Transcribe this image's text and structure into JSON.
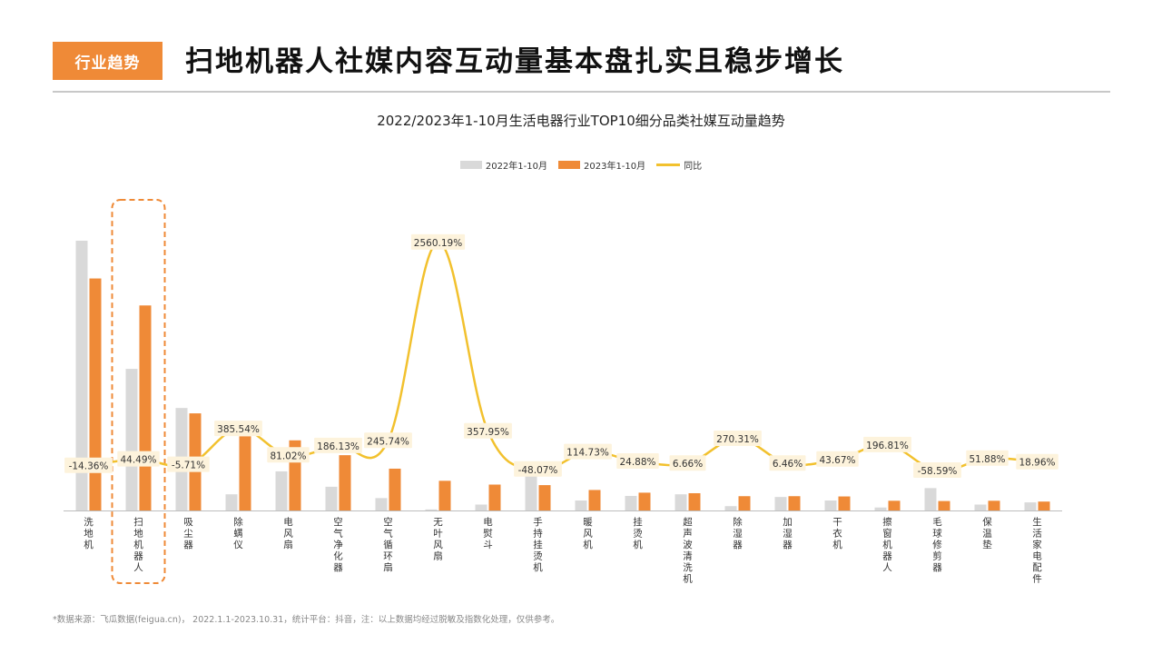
{
  "header": {
    "tag": "行业趋势",
    "title": "扫地机器人社媒内容互动量基本盘扎实且稳步增长"
  },
  "footnote": "*数据来源：飞瓜数据(feigua.cn)， 2022.1.1-2023.10.31，统计平台：抖音，注：以上数据均经过脱敏及指数化处理，仅供参考。",
  "colors": {
    "accent": "#ef8a37",
    "bar_2022": "#d9d9d9",
    "bar_2023": "#ef8a37",
    "yoy_line": "#f2c12e",
    "label_bg": "#fdf3dc",
    "highlight_box": "#ef8a37"
  },
  "chart_data": {
    "type": "bar",
    "title": "2022/2023年1-10月生活电器行业TOP10细分品类社媒互动量趋势",
    "categories": [
      "洗地机",
      "扫地机器人",
      "吸尘器",
      "除螨仪",
      "电风扇",
      "空气净化器",
      "空气循环扇",
      "无叶风扇",
      "电熨斗",
      "手持挂烫机",
      "暖风机",
      "挂烫机",
      "超声波清洗机",
      "除湿器",
      "加湿器",
      "干衣机",
      "擦窗机器人",
      "毛球修剪器",
      "保温垫",
      "生活家电配件"
    ],
    "series": [
      {
        "name": "2022年1-10月",
        "type": "bar",
        "values": [
          100,
          52.5,
          38,
          6,
          14.5,
          8.8,
          4.6,
          0.4,
          2.2,
          13,
          3.7,
          5.4,
          6,
          1.6,
          5,
          3.7,
          1.1,
          8.3,
          2.2,
          3
        ]
      },
      {
        "name": "2023年1-10月",
        "type": "bar",
        "values": [
          86,
          76,
          36,
          27.5,
          26,
          20.5,
          15.5,
          11,
          9.6,
          9.4,
          7.6,
          6.6,
          6.4,
          5.3,
          5.3,
          5.2,
          3.6,
          3.5,
          3.6,
          3.3
        ]
      },
      {
        "name": "同比",
        "type": "line",
        "values": [
          -14.36,
          44.49,
          -5.71,
          385.54,
          81.02,
          186.13,
          245.74,
          2560.19,
          357.95,
          -48.07,
          114.73,
          24.88,
          6.66,
          270.31,
          6.46,
          43.67,
          196.81,
          -58.59,
          51.88,
          18.96
        ]
      }
    ],
    "data_labels": [
      "-14.36%",
      "44.49%",
      "-5.71%",
      "385.54%",
      "81.02%",
      "186.13%",
      "245.74%",
      "2560.19%",
      "357.95%",
      "-48.07%",
      "114.73%",
      "24.88%",
      "6.66%",
      "270.31%",
      "6.46%",
      "43.67%",
      "196.81%",
      "-58.59%",
      "51.88%",
      "18.96%"
    ],
    "highlight_category": "扫地机器人",
    "legend_position": "top-center",
    "grid": false
  }
}
